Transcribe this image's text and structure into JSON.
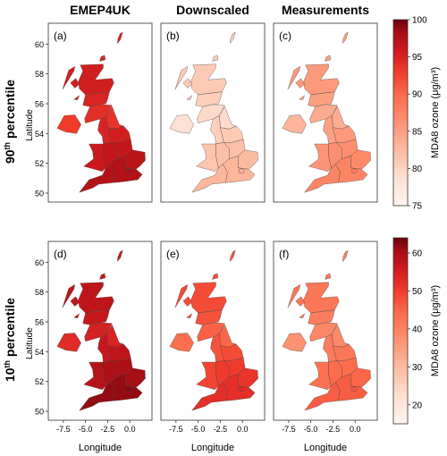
{
  "columns": [
    {
      "title": "EMEP4UK"
    },
    {
      "title": "Downscaled"
    },
    {
      "title": "Measurements"
    }
  ],
  "rows": [
    {
      "label_main": "90",
      "label_sup": "th",
      "label_rest": " percentile",
      "colorbar": {
        "label": "MDA8 ozone (μg/m³)",
        "ticks": [
          "75",
          "80",
          "85",
          "90",
          "95",
          "100"
        ],
        "min": 75,
        "max": 100
      },
      "panels": [
        {
          "tag": "(a)",
          "level": 0.8
        },
        {
          "tag": "(b)",
          "level": 0.22
        },
        {
          "tag": "(c)",
          "level": 0.4
        }
      ]
    },
    {
      "label_main": "10",
      "label_sup": "th",
      "label_rest": " percentile",
      "colorbar": {
        "label": "MDA8 ozone (μg/m³)",
        "ticks": [
          "20",
          "30",
          "40",
          "50",
          "60"
        ],
        "min": 15,
        "max": 64
      },
      "panels": [
        {
          "tag": "(d)",
          "level": 0.85
        },
        {
          "tag": "(e)",
          "level": 0.66
        },
        {
          "tag": "(f)",
          "level": 0.53
        }
      ]
    }
  ],
  "axes": {
    "ylabel": "Latitude",
    "xlabel": "Longitude",
    "yticks": [
      "50",
      "52",
      "54",
      "56",
      "58",
      "60"
    ],
    "xticks": [
      "-7.5",
      "-5.0",
      "-2.5",
      "0.0"
    ]
  },
  "colors": {
    "low": "#fff5f0",
    "mid": "#fb6a4a",
    "high": "#67000d"
  }
}
